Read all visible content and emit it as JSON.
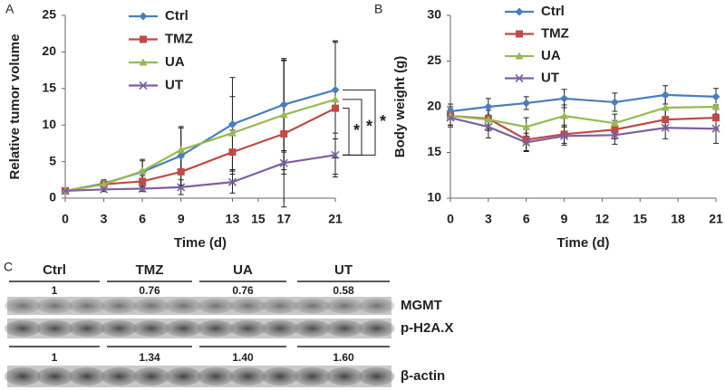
{
  "chart_data": [
    {
      "type": "line",
      "panel": "A",
      "xlabel": "Time (d)",
      "ylabel": "Relative tumor volume",
      "x": [
        0,
        3,
        6,
        9,
        13,
        17,
        21
      ],
      "xlim": [
        0,
        21
      ],
      "xticks": [
        0,
        3,
        6,
        9,
        13,
        15,
        17,
        21
      ],
      "ylim": [
        0,
        25
      ],
      "yticks": [
        0,
        5,
        10,
        15,
        20,
        25
      ],
      "grid": false,
      "series": [
        {
          "name": "Ctrl",
          "color": "#4a7ebb",
          "marker": "diamond",
          "values": [
            1,
            2,
            3.6,
            5.8,
            10.1,
            12.8,
            14.8
          ],
          "errors": [
            0.3,
            0.5,
            1.5,
            4,
            6.4,
            6.3,
            6.7
          ]
        },
        {
          "name": "TMZ",
          "color": "#be4b48",
          "marker": "square",
          "values": [
            1,
            1.9,
            2.3,
            3.6,
            6.3,
            8.8,
            12.3
          ],
          "errors": [
            0.3,
            0.4,
            0.8,
            2,
            3,
            10,
            9
          ]
        },
        {
          "name": "UA",
          "color": "#98b954",
          "marker": "triangle",
          "values": [
            1,
            1.9,
            3.7,
            6.6,
            8.9,
            11.4,
            13.5
          ],
          "errors": [
            0.3,
            0.4,
            1.6,
            3,
            5,
            7.5,
            8
          ]
        },
        {
          "name": "UT",
          "color": "#7d60a0",
          "marker": "x",
          "values": [
            1,
            1.2,
            1.3,
            1.5,
            2.2,
            4.8,
            5.9
          ],
          "errors": [
            0.2,
            0.3,
            0.4,
            1,
            1.5,
            1.5,
            3
          ]
        }
      ],
      "annotations": [
        "*",
        "*",
        "*"
      ]
    },
    {
      "type": "line",
      "panel": "B",
      "xlabel": "Time (d)",
      "ylabel": "Body weight (g)",
      "x": [
        0,
        3,
        6,
        9,
        13,
        17,
        21
      ],
      "xlim": [
        0,
        21
      ],
      "xticks": [
        0,
        3,
        6,
        9,
        12,
        15,
        18,
        21
      ],
      "ylim": [
        10,
        30
      ],
      "yticks": [
        10,
        15,
        20,
        25,
        30
      ],
      "grid": false,
      "series": [
        {
          "name": "Ctrl",
          "color": "#4a7ebb",
          "marker": "diamond",
          "values": [
            19.5,
            20,
            20.4,
            20.9,
            20.5,
            21.3,
            21.1
          ],
          "errors": [
            0.8,
            0.9,
            0.7,
            1,
            1,
            1,
            0.9
          ]
        },
        {
          "name": "TMZ",
          "color": "#be4b48",
          "marker": "square",
          "values": [
            19,
            18.7,
            16.4,
            17,
            17.5,
            18.6,
            18.8
          ],
          "errors": [
            1,
            1.3,
            1.2,
            1,
            1,
            1,
            1.2
          ]
        },
        {
          "name": "UA",
          "color": "#98b954",
          "marker": "triangle",
          "values": [
            19,
            18.6,
            17.8,
            19,
            18.2,
            19.9,
            20
          ],
          "errors": [
            1,
            1,
            1,
            1.2,
            1,
            1.2,
            1
          ]
        },
        {
          "name": "UT",
          "color": "#7d60a0",
          "marker": "x",
          "values": [
            18.8,
            17.8,
            16.1,
            16.8,
            16.9,
            17.7,
            17.6
          ],
          "errors": [
            1,
            1.2,
            1,
            1,
            1,
            1.2,
            1.6
          ]
        }
      ]
    }
  ],
  "panel_c": {
    "panel": "C",
    "groups": [
      "Ctrl",
      "TMZ",
      "UA",
      "UT"
    ],
    "mgmt_ratios": [
      "1",
      "0.76",
      "0.76",
      "0.58"
    ],
    "actin_ratios": [
      "1",
      "1.34",
      "1.40",
      "1.60"
    ],
    "rows": [
      "MGMT",
      "p-H2A.X",
      "β-actin"
    ]
  }
}
